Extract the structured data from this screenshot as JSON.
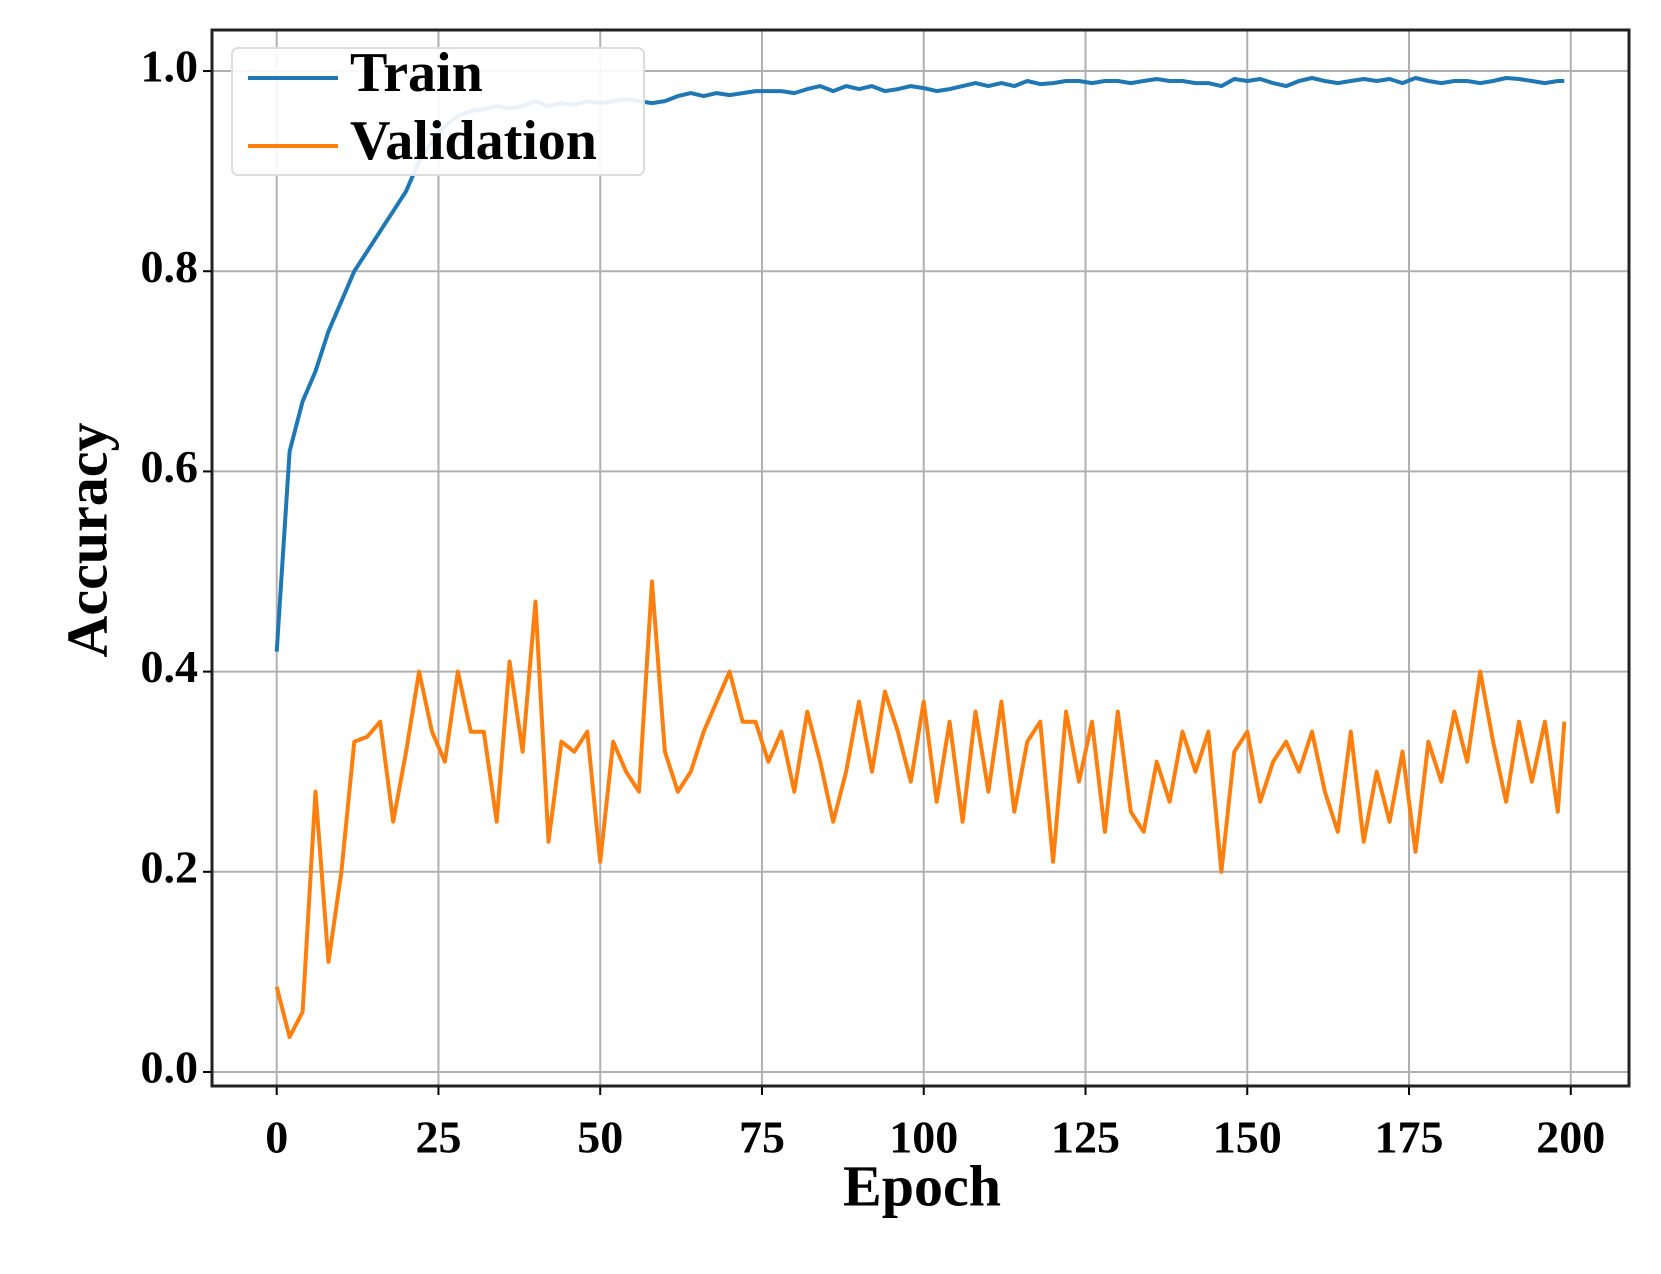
{
  "chart_data": {
    "type": "line",
    "xlabel": "Epoch",
    "ylabel": "Accuracy",
    "x": [
      0,
      2,
      4,
      6,
      8,
      10,
      12,
      14,
      16,
      18,
      20,
      22,
      24,
      26,
      28,
      30,
      32,
      34,
      36,
      38,
      40,
      42,
      44,
      46,
      48,
      50,
      52,
      54,
      56,
      58,
      60,
      62,
      64,
      66,
      68,
      70,
      72,
      74,
      76,
      78,
      80,
      82,
      84,
      86,
      88,
      90,
      92,
      94,
      96,
      98,
      100,
      102,
      104,
      106,
      108,
      110,
      112,
      114,
      116,
      118,
      120,
      122,
      124,
      126,
      128,
      130,
      132,
      134,
      136,
      138,
      140,
      142,
      144,
      146,
      148,
      150,
      152,
      154,
      156,
      158,
      160,
      162,
      164,
      166,
      168,
      170,
      172,
      174,
      176,
      178,
      180,
      182,
      184,
      186,
      188,
      190,
      192,
      194,
      196,
      198,
      199
    ],
    "series": [
      {
        "name": "Train",
        "color": "#1f77b4",
        "values": [
          0.42,
          0.62,
          0.67,
          0.7,
          0.74,
          0.77,
          0.8,
          0.82,
          0.84,
          0.86,
          0.88,
          0.91,
          0.93,
          0.945,
          0.955,
          0.96,
          0.962,
          0.965,
          0.963,
          0.965,
          0.97,
          0.965,
          0.968,
          0.966,
          0.97,
          0.968,
          0.97,
          0.972,
          0.97,
          0.968,
          0.97,
          0.975,
          0.978,
          0.975,
          0.978,
          0.976,
          0.978,
          0.98,
          0.98,
          0.98,
          0.978,
          0.982,
          0.985,
          0.98,
          0.985,
          0.982,
          0.985,
          0.98,
          0.982,
          0.985,
          0.983,
          0.98,
          0.982,
          0.985,
          0.988,
          0.985,
          0.988,
          0.985,
          0.99,
          0.987,
          0.988,
          0.99,
          0.99,
          0.988,
          0.99,
          0.99,
          0.988,
          0.99,
          0.992,
          0.99,
          0.99,
          0.988,
          0.988,
          0.985,
          0.992,
          0.99,
          0.992,
          0.988,
          0.985,
          0.99,
          0.993,
          0.99,
          0.988,
          0.99,
          0.992,
          0.99,
          0.992,
          0.988,
          0.993,
          0.99,
          0.988,
          0.99,
          0.99,
          0.988,
          0.99,
          0.993,
          0.992,
          0.99,
          0.988,
          0.99,
          0.99
        ]
      },
      {
        "name": "Validation",
        "color": "#ff7f0e",
        "values": [
          0.085,
          0.035,
          0.06,
          0.28,
          0.11,
          0.2,
          0.33,
          0.335,
          0.35,
          0.25,
          0.32,
          0.4,
          0.34,
          0.31,
          0.4,
          0.34,
          0.34,
          0.25,
          0.41,
          0.32,
          0.47,
          0.23,
          0.33,
          0.32,
          0.34,
          0.21,
          0.33,
          0.3,
          0.28,
          0.49,
          0.32,
          0.28,
          0.3,
          0.34,
          0.37,
          0.4,
          0.35,
          0.35,
          0.31,
          0.34,
          0.28,
          0.36,
          0.31,
          0.25,
          0.3,
          0.37,
          0.3,
          0.38,
          0.34,
          0.29,
          0.37,
          0.27,
          0.35,
          0.25,
          0.36,
          0.28,
          0.37,
          0.26,
          0.33,
          0.35,
          0.21,
          0.36,
          0.29,
          0.35,
          0.24,
          0.36,
          0.26,
          0.24,
          0.31,
          0.27,
          0.34,
          0.3,
          0.34,
          0.2,
          0.32,
          0.34,
          0.27,
          0.31,
          0.33,
          0.3,
          0.34,
          0.28,
          0.24,
          0.34,
          0.23,
          0.3,
          0.25,
          0.32,
          0.22,
          0.33,
          0.29,
          0.36,
          0.31,
          0.4,
          0.33,
          0.27,
          0.35,
          0.29,
          0.35,
          0.26,
          0.35
        ]
      }
    ],
    "xlim": [
      -10,
      209
    ],
    "xticks": [
      0,
      25,
      50,
      75,
      100,
      125,
      150,
      175,
      200
    ],
    "ylim": [
      -0.014,
      1.041
    ],
    "yticks": [
      {
        "value": 0,
        "label": "0.0"
      },
      0.2,
      0.4,
      0.6,
      0.8,
      {
        "value": 1,
        "label": "1.0"
      }
    ],
    "grid": true,
    "legend": "upper left"
  }
}
